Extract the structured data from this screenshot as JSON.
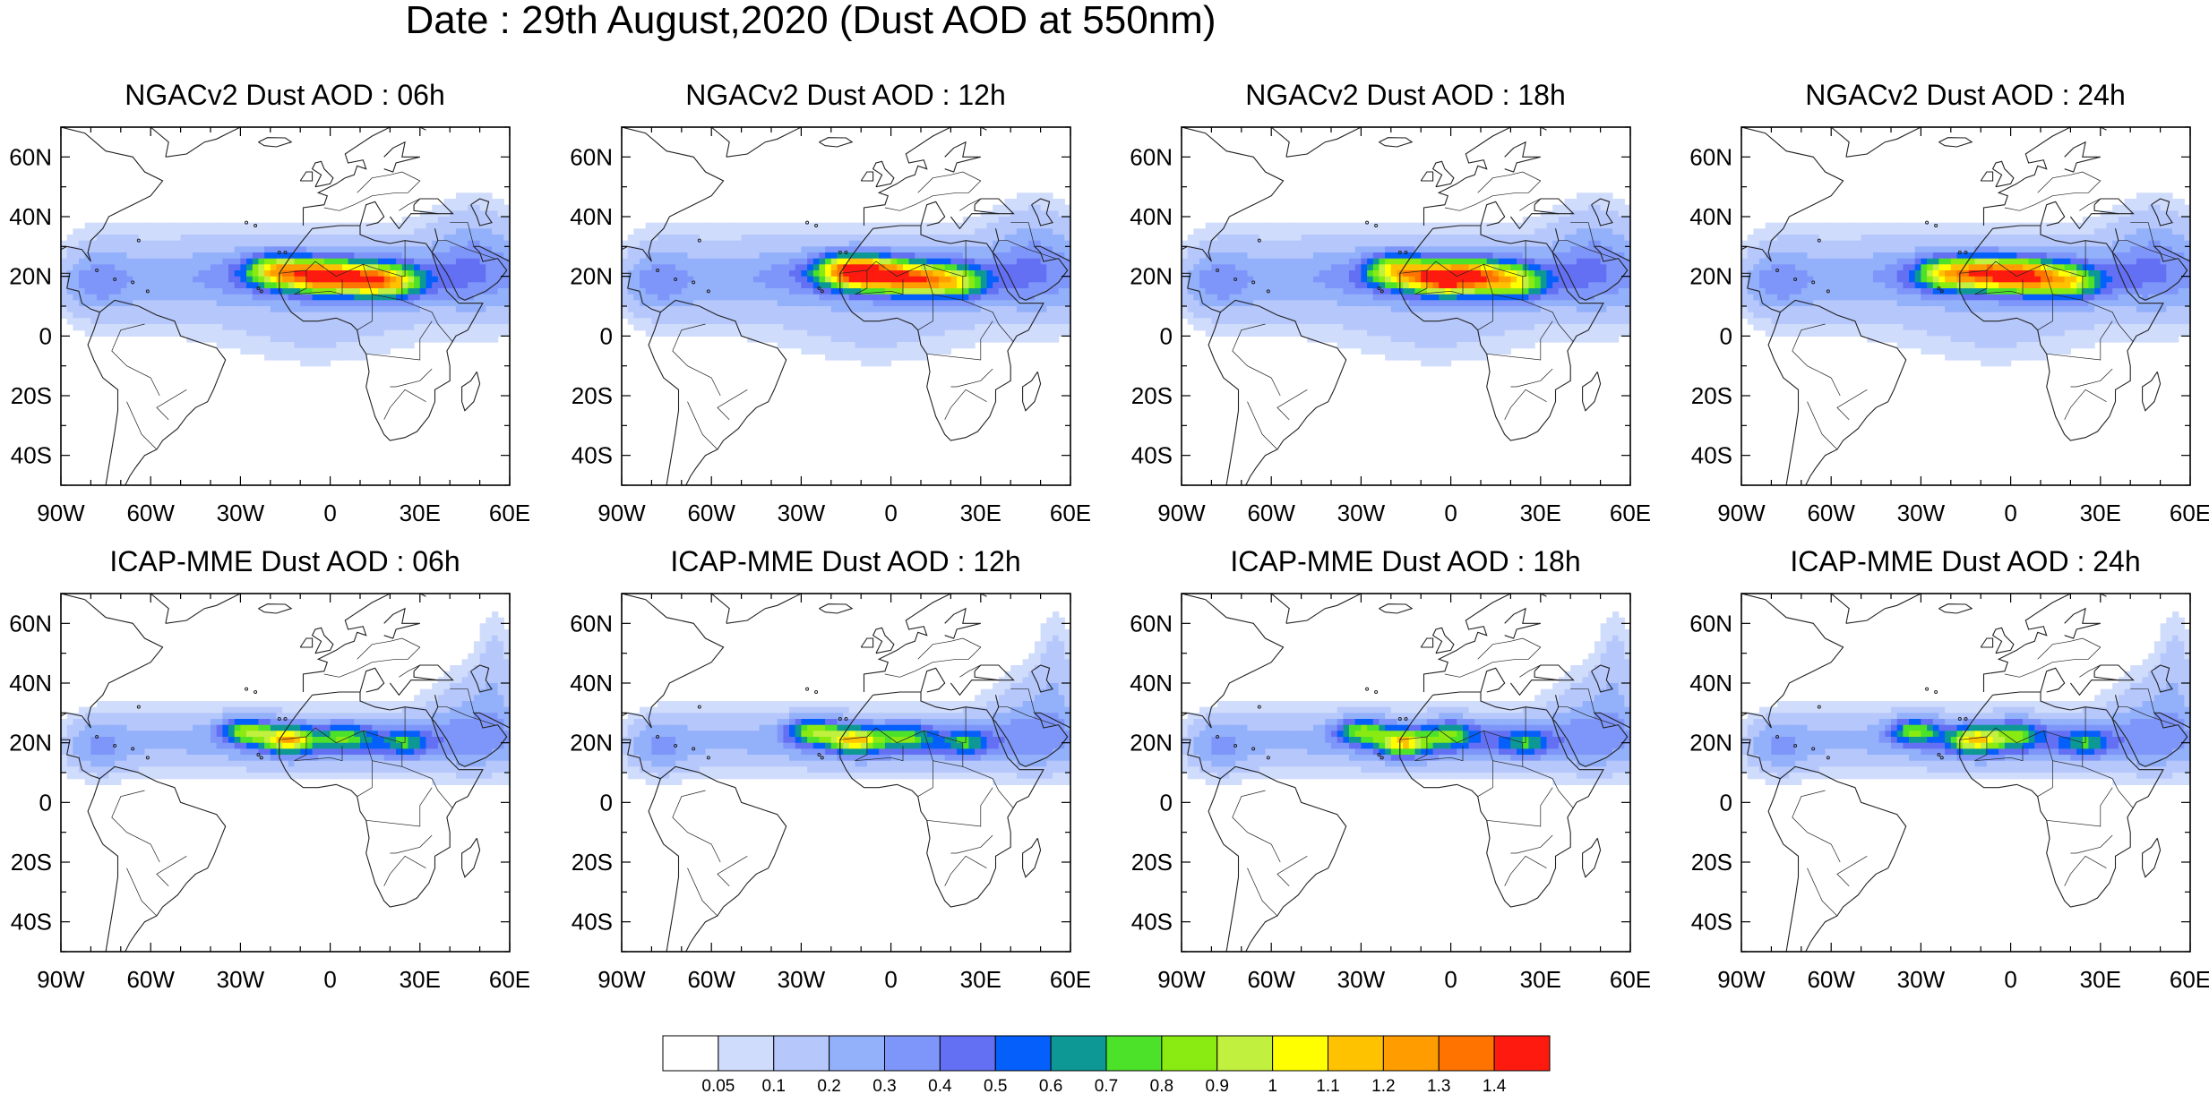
{
  "figure": {
    "title": "Date : 29th August,2020 (Dust AOD at 550nm)",
    "lon_range": [
      -90,
      60
    ],
    "lat_range": [
      -50,
      70
    ],
    "x_ticks": [
      {
        "lon": -90,
        "label": "90W"
      },
      {
        "lon": -60,
        "label": "60W"
      },
      {
        "lon": -30,
        "label": "30W"
      },
      {
        "lon": 0,
        "label": "0"
      },
      {
        "lon": 30,
        "label": "30E"
      },
      {
        "lon": 60,
        "label": "60E"
      }
    ],
    "y_ticks": [
      {
        "lat": 60,
        "label": "60N"
      },
      {
        "lat": 40,
        "label": "40N"
      },
      {
        "lat": 20,
        "label": "20N"
      },
      {
        "lat": 0,
        "label": "0"
      },
      {
        "lat": -20,
        "label": "20S"
      },
      {
        "lat": -40,
        "label": "40S"
      }
    ]
  },
  "panels": [
    {
      "title": "NGACv2 Dust AOD : 06h",
      "model": "NGACv2",
      "hour": 6,
      "plume": [
        {
          "lon": -18,
          "lat": 22,
          "amp": 0.72
        },
        {
          "lon": -4,
          "lat": 20,
          "amp": 0.85
        },
        {
          "lon": 10,
          "lat": 19,
          "amp": 0.8
        },
        {
          "lon": 22,
          "lat": 18,
          "amp": 0.6
        }
      ]
    },
    {
      "title": "NGACv2 Dust AOD : 12h",
      "model": "NGACv2",
      "hour": 12,
      "plume": [
        {
          "lon": -16,
          "lat": 22,
          "amp": 0.72
        },
        {
          "lon": -6,
          "lat": 21,
          "amp": 0.85
        },
        {
          "lon": 8,
          "lat": 19,
          "amp": 0.78
        },
        {
          "lon": 22,
          "lat": 18,
          "amp": 0.6
        }
      ]
    },
    {
      "title": "NGACv2 Dust AOD : 18h",
      "model": "NGACv2",
      "hour": 18,
      "plume": [
        {
          "lon": -18,
          "lat": 22,
          "amp": 0.7
        },
        {
          "lon": -4,
          "lat": 19,
          "amp": 0.85
        },
        {
          "lon": 8,
          "lat": 20,
          "amp": 0.8
        },
        {
          "lon": 22,
          "lat": 18,
          "amp": 0.6
        }
      ]
    },
    {
      "title": "NGACv2 Dust AOD : 24h",
      "model": "NGACv2",
      "hour": 24,
      "plume": [
        {
          "lon": -22,
          "lat": 21,
          "amp": 0.65
        },
        {
          "lon": -8,
          "lat": 21,
          "amp": 0.8
        },
        {
          "lon": 6,
          "lat": 20,
          "amp": 0.82
        },
        {
          "lon": 20,
          "lat": 18,
          "amp": 0.6
        }
      ]
    },
    {
      "title": "ICAP-MME Dust AOD : 06h",
      "model": "ICAP-MME",
      "hour": 6,
      "plume": [
        {
          "lon": -28,
          "lat": 24,
          "amp": 0.62
        },
        {
          "lon": -14,
          "lat": 21,
          "amp": 0.85
        },
        {
          "lon": 5,
          "lat": 22,
          "amp": 0.45
        },
        {
          "lon": 25,
          "lat": 20,
          "amp": 0.4
        }
      ]
    },
    {
      "title": "ICAP-MME Dust AOD : 12h",
      "model": "ICAP-MME",
      "hour": 12,
      "plume": [
        {
          "lon": -26,
          "lat": 24,
          "amp": 0.62
        },
        {
          "lon": -12,
          "lat": 21,
          "amp": 0.78
        },
        {
          "lon": 5,
          "lat": 22,
          "amp": 0.45
        },
        {
          "lon": 25,
          "lat": 20,
          "amp": 0.4
        }
      ]
    },
    {
      "title": "ICAP-MME Dust AOD : 18h",
      "model": "ICAP-MME",
      "hour": 18,
      "plume": [
        {
          "lon": -30,
          "lat": 24,
          "amp": 0.6
        },
        {
          "lon": -16,
          "lat": 20,
          "amp": 0.78
        },
        {
          "lon": 0,
          "lat": 23,
          "amp": 0.48
        },
        {
          "lon": 25,
          "lat": 20,
          "amp": 0.4
        }
      ]
    },
    {
      "title": "ICAP-MME Dust AOD : 24h",
      "model": "ICAP-MME",
      "hour": 24,
      "plume": [
        {
          "lon": -32,
          "lat": 24,
          "amp": 0.58
        },
        {
          "lon": -12,
          "lat": 21,
          "amp": 0.78
        },
        {
          "lon": 2,
          "lat": 23,
          "amp": 0.48
        },
        {
          "lon": 25,
          "lat": 20,
          "amp": 0.4
        }
      ]
    }
  ],
  "colorbar": {
    "colors": [
      "#ffffff",
      "#d0dcfb",
      "#b6c7fb",
      "#93b0fa",
      "#7e96f9",
      "#6470f3",
      "#055ffb",
      "#0d9895",
      "#4de22a",
      "#8aeb12",
      "#c2f03f",
      "#ffff00",
      "#ffc200",
      "#ff9c00",
      "#ff7300",
      "#ff1a0f"
    ],
    "labels": [
      "0.05",
      "0.1",
      "0.2",
      "0.3",
      "0.4",
      "0.5",
      "0.6",
      "0.7",
      "0.8",
      "0.9",
      "1",
      "1.1",
      "1.2",
      "1.3",
      "1.4"
    ],
    "levels": [
      0.05,
      0.1,
      0.2,
      0.3,
      0.4,
      0.5,
      0.6,
      0.7,
      0.8,
      0.9,
      1.0,
      1.1,
      1.2,
      1.3,
      1.4
    ]
  }
}
